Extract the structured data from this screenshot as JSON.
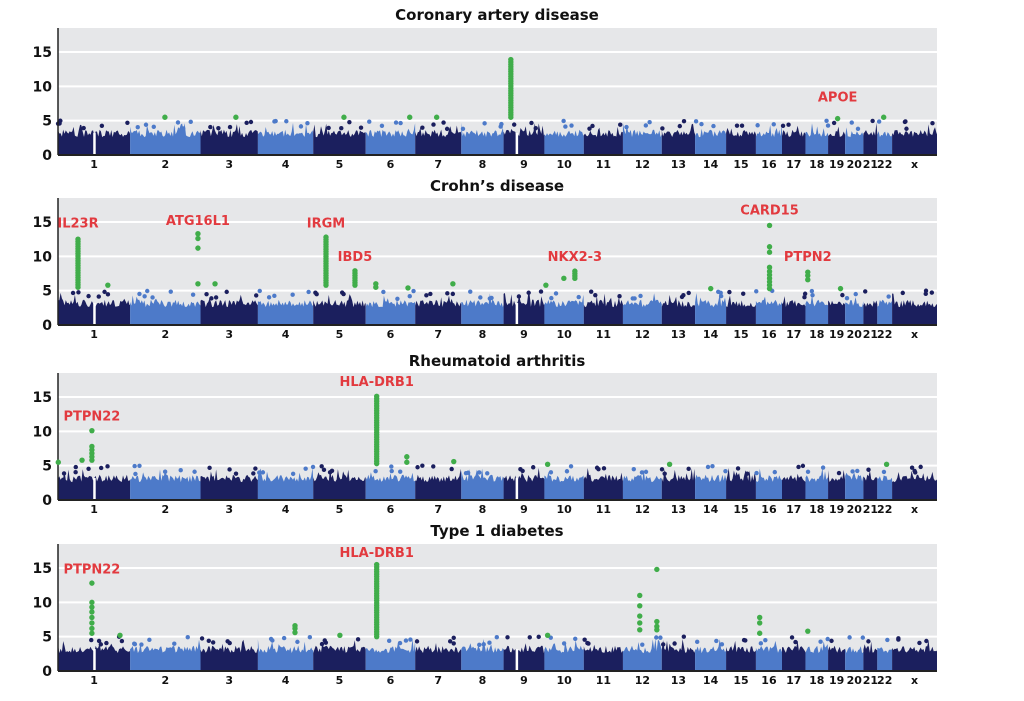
{
  "chart_data": {
    "type": "scatter",
    "subtype": "manhattan",
    "xlabel": "",
    "ylabel": "",
    "ylim": [
      0,
      18.5
    ],
    "yticks": [
      0,
      5,
      10,
      15
    ],
    "grid": true,
    "colors": {
      "chrom_dark": "#1b1f5e",
      "chrom_light": "#4d7ac9",
      "significant": "#40ad4a",
      "label": "#e23a3f",
      "plot_background": "#e6e7e9",
      "gridline": "#ffffff"
    },
    "chromosomes": [
      {
        "label": "1",
        "length_mb": 249
      },
      {
        "label": "2",
        "length_mb": 243
      },
      {
        "label": "3",
        "length_mb": 198
      },
      {
        "label": "4",
        "length_mb": 191
      },
      {
        "label": "5",
        "length_mb": 181
      },
      {
        "label": "6",
        "length_mb": 171
      },
      {
        "label": "7",
        "length_mb": 159
      },
      {
        "label": "8",
        "length_mb": 146
      },
      {
        "label": "9",
        "length_mb": 141
      },
      {
        "label": "10",
        "length_mb": 136
      },
      {
        "label": "11",
        "length_mb": 135
      },
      {
        "label": "12",
        "length_mb": 134
      },
      {
        "label": "13",
        "length_mb": 115
      },
      {
        "label": "14",
        "length_mb": 107
      },
      {
        "label": "15",
        "length_mb": 103
      },
      {
        "label": "16",
        "length_mb": 90
      },
      {
        "label": "17",
        "length_mb": 81
      },
      {
        "label": "18",
        "length_mb": 78
      },
      {
        "label": "19",
        "length_mb": 59
      },
      {
        "label": "20",
        "length_mb": 63
      },
      {
        "label": "21",
        "length_mb": 48
      },
      {
        "label": "22",
        "length_mb": 51
      },
      {
        "label": "x",
        "length_mb": 155
      }
    ],
    "panels": [
      {
        "title": "Coronary artery disease",
        "hits": [
          {
            "chr": "2",
            "pos": 120,
            "values": [
              5.5
            ]
          },
          {
            "chr": "3",
            "pos": 122,
            "values": [
              5.5
            ]
          },
          {
            "chr": "5",
            "pos": 106,
            "values": [
              5.5
            ]
          },
          {
            "chr": "6",
            "pos": 152,
            "values": [
              5.5
            ]
          },
          {
            "chr": "7",
            "pos": 74,
            "values": [
              5.5
            ]
          },
          {
            "chr": "9",
            "pos": 25,
            "range": [
              5.5,
              14
            ]
          },
          {
            "chr": "19",
            "pos": 33,
            "values": [
              5.3
            ]
          },
          {
            "chr": "22",
            "pos": 22,
            "values": [
              5.5
            ]
          }
        ],
        "labels": [
          {
            "text": "APOE",
            "chr": "19",
            "pos": 33,
            "y": 7.8
          }
        ]
      },
      {
        "title": "Crohn’s disease",
        "hits": [
          {
            "chr": "1",
            "pos": 69,
            "range": [
              5.5,
              12.5
            ]
          },
          {
            "chr": "1",
            "pos": 172,
            "values": [
              5.8
            ]
          },
          {
            "chr": "2",
            "pos": 234,
            "values": [
              6.0,
              11.2,
              12.6,
              13.3
            ]
          },
          {
            "chr": "3",
            "pos": 50,
            "values": [
              6.0
            ]
          },
          {
            "chr": "5",
            "pos": 44,
            "range": [
              5.8,
              13.0
            ]
          },
          {
            "chr": "5",
            "pos": 144,
            "range": [
              5.8,
              8.2
            ]
          },
          {
            "chr": "6",
            "pos": 35,
            "values": [
              5.5,
              6.0
            ]
          },
          {
            "chr": "6",
            "pos": 146,
            "values": [
              5.4
            ]
          },
          {
            "chr": "7",
            "pos": 130,
            "values": [
              6.0
            ]
          },
          {
            "chr": "10",
            "pos": 5,
            "values": [
              5.8
            ]
          },
          {
            "chr": "10",
            "pos": 67,
            "values": [
              6.8
            ]
          },
          {
            "chr": "10",
            "pos": 105,
            "range": [
              6.8,
              8.0
            ]
          },
          {
            "chr": "14",
            "pos": 54,
            "values": [
              5.3
            ]
          },
          {
            "chr": "16",
            "pos": 47,
            "values": [
              5.3,
              5.8,
              6.3,
              6.8,
              7.3,
              7.8,
              8.4,
              10.6,
              11.4,
              14.5
            ]
          },
          {
            "chr": "18",
            "pos": 8,
            "values": [
              6.6,
              7.2,
              7.7
            ]
          },
          {
            "chr": "19",
            "pos": 43,
            "values": [
              5.3
            ]
          }
        ],
        "labels": [
          {
            "text": "IL23R",
            "chr": "1",
            "pos": 69,
            "y": 14.2
          },
          {
            "text": "ATG16L1",
            "chr": "2",
            "pos": 234,
            "y": 14.6
          },
          {
            "text": "IRGM",
            "chr": "5",
            "pos": 44,
            "y": 14.2
          },
          {
            "text": "IBD5",
            "chr": "5",
            "pos": 144,
            "y": 9.3
          },
          {
            "text": "NKX2-3",
            "chr": "10",
            "pos": 105,
            "y": 9.3
          },
          {
            "text": "CARD15",
            "chr": "16",
            "pos": 47,
            "y": 16.1
          },
          {
            "text": "PTPN2",
            "chr": "18",
            "pos": 8,
            "y": 9.3
          }
        ]
      },
      {
        "title": "Rheumatoid arthritis",
        "hits": [
          {
            "chr": "1",
            "pos": 1,
            "values": [
              5.5
            ]
          },
          {
            "chr": "1",
            "pos": 83,
            "values": [
              5.8
            ]
          },
          {
            "chr": "1",
            "pos": 117,
            "values": [
              5.8,
              6.3,
              6.8,
              7.3,
              7.8,
              10.1
            ]
          },
          {
            "chr": "6",
            "pos": 38,
            "range": [
              5.3,
              15.3
            ]
          },
          {
            "chr": "6",
            "pos": 142,
            "values": [
              5.5,
              6.3
            ]
          },
          {
            "chr": "7",
            "pos": 133,
            "values": [
              5.6
            ]
          },
          {
            "chr": "10",
            "pos": 11,
            "values": [
              5.2
            ]
          },
          {
            "chr": "13",
            "pos": 27,
            "values": [
              5.2
            ]
          },
          {
            "chr": "22",
            "pos": 32,
            "values": [
              5.2
            ]
          }
        ],
        "labels": [
          {
            "text": "PTPN22",
            "chr": "1",
            "pos": 117,
            "y": 11.6
          },
          {
            "text": "HLA-DRB1",
            "chr": "6",
            "pos": 38,
            "y": 16.6
          }
        ]
      },
      {
        "title": "Type 1 diabetes",
        "hits": [
          {
            "chr": "1",
            "pos": 117,
            "values": [
              5.5,
              6.2,
              7.0,
              7.8,
              8.6,
              9.3,
              10.0,
              12.8
            ]
          },
          {
            "chr": "1",
            "pos": 214,
            "values": [
              5.2
            ]
          },
          {
            "chr": "4",
            "pos": 128,
            "values": [
              5.6,
              6.2,
              6.6
            ]
          },
          {
            "chr": "5",
            "pos": 92,
            "values": [
              5.2
            ]
          },
          {
            "chr": "6",
            "pos": 38,
            "range": [
              5.0,
              15.5
            ]
          },
          {
            "chr": "10",
            "pos": 11,
            "values": [
              5.2
            ]
          },
          {
            "chr": "12",
            "pos": 58,
            "values": [
              6.0,
              7.0,
              8.0,
              9.5,
              11.0
            ]
          },
          {
            "chr": "12",
            "pos": 117,
            "values": [
              6.0,
              6.5,
              7.2,
              14.8
            ]
          },
          {
            "chr": "16",
            "pos": 13,
            "values": [
              5.5,
              7.0,
              7.8
            ]
          },
          {
            "chr": "18",
            "pos": 8,
            "values": [
              5.8
            ]
          }
        ],
        "labels": [
          {
            "text": "PTPN22",
            "chr": "1",
            "pos": 117,
            "y": 14.2
          },
          {
            "text": "HLA-DRB1",
            "chr": "6",
            "pos": 38,
            "y": 16.6
          }
        ]
      }
    ]
  }
}
